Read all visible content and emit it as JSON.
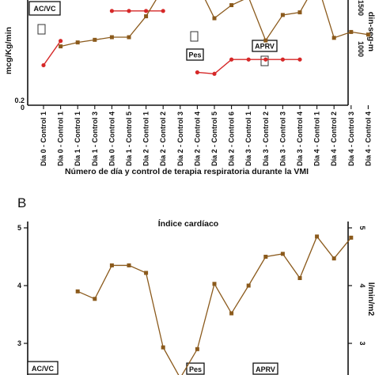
{
  "chart_data": [
    {
      "panel_label": "",
      "type": "line",
      "title": "",
      "xlabel": "Número de día y control de terapia respiratoria durante la VMI",
      "ylabel_left": "mcg/Kg/min",
      "ylabel_right": "din-seg-m",
      "categories": [
        "Día 0 - Control 1",
        "Día 0 - Control 1",
        "Día 1 - Control 1",
        "Día 1 - Control 3",
        "Día 0 - Control 4",
        "Día 1 - Control 5",
        "Día 2 - Control 1",
        "Día 2 - Control 2",
        "Día 2 - Control 3",
        "Día 2 - Control 4",
        "Día 2 - Control 5",
        "Día 2 - Control 6",
        "Día 3 - Control 1",
        "Día 3 - Control 2",
        "Día 3 - Control 3",
        "Día 3 - Control 4",
        "Día 4 - Control 1",
        "Día 4 - Control 2",
        "Día 4 - Control 3",
        "Día 4 - Control 4"
      ],
      "left_ticks": [
        "0",
        "0.2"
      ],
      "right_ticks": [
        "1000",
        "1500"
      ],
      "ylim_left": [
        0,
        0.72
      ],
      "ylim_right": [
        0,
        1850
      ],
      "series": [
        {
          "name": "",
          "axis": "left",
          "color": "#d62828",
          "marker": "circle",
          "segments": [
            [
              [
                0,
                0.28
              ],
              [
                1,
                0.45
              ]
            ],
            [
              [
                4,
                0.66
              ],
              [
                5,
                0.66
              ],
              [
                6,
                0.66
              ],
              [
                7,
                0.66
              ]
            ],
            [
              [
                9,
                0.23
              ],
              [
                10,
                0.22
              ],
              [
                11,
                0.32
              ],
              [
                12,
                0.32
              ],
              [
                13,
                0.32
              ],
              [
                14,
                0.32
              ],
              [
                15,
                0.32
              ]
            ]
          ]
        },
        {
          "name": "",
          "axis": "right",
          "color": "#8b5a1c",
          "marker": "square",
          "points": [
            [
              1,
              900
            ],
            [
              2,
              960
            ],
            [
              3,
              1000
            ],
            [
              4,
              1040
            ],
            [
              5,
              1040
            ],
            [
              6,
              1360
            ],
            [
              7,
              1790
            ],
            [
              8,
              1880
            ],
            [
              9,
              1860
            ],
            [
              10,
              1330
            ],
            [
              11,
              1530
            ],
            [
              12,
              1650
            ],
            [
              13,
              990
            ],
            [
              14,
              1380
            ],
            [
              15,
              1420
            ],
            [
              16,
              1880
            ],
            [
              17,
              1030
            ],
            [
              18,
              1120
            ],
            [
              19,
              1080
            ]
          ]
        }
      ],
      "annotations": [
        {
          "text": "AC/VC",
          "framed": true
        },
        {
          "text": "Pes",
          "framed": true
        },
        {
          "text": "APRV",
          "framed": true
        }
      ]
    },
    {
      "panel_label": "B",
      "type": "line",
      "title": "Índice cardíaco",
      "ylabel_right": "l/min/m2",
      "left_ticks": [
        "3",
        "4",
        "5"
      ],
      "right_ticks": [
        "3",
        "4",
        "5"
      ],
      "ylim": [
        3,
        5
      ],
      "series": [
        {
          "name": "",
          "color": "#8b5a1c",
          "marker": "square",
          "points": [
            [
              2,
              3.9
            ],
            [
              3,
              3.77
            ],
            [
              4,
              4.35
            ],
            [
              5,
              4.35
            ],
            [
              6,
              4.22
            ],
            [
              7,
              2.93
            ],
            [
              8,
              2.4
            ],
            [
              9,
              2.9
            ],
            [
              10,
              4.03
            ],
            [
              11,
              3.52
            ],
            [
              12,
              4.0
            ],
            [
              13,
              4.5
            ],
            [
              14,
              4.55
            ],
            [
              15,
              4.13
            ],
            [
              16,
              4.85
            ],
            [
              17,
              4.47
            ],
            [
              18,
              4.83
            ]
          ]
        }
      ],
      "annotations": [
        {
          "text": "AC/VC",
          "framed": true
        },
        {
          "text": "Pes",
          "framed": true
        },
        {
          "text": "APRV",
          "framed": true
        }
      ]
    }
  ]
}
